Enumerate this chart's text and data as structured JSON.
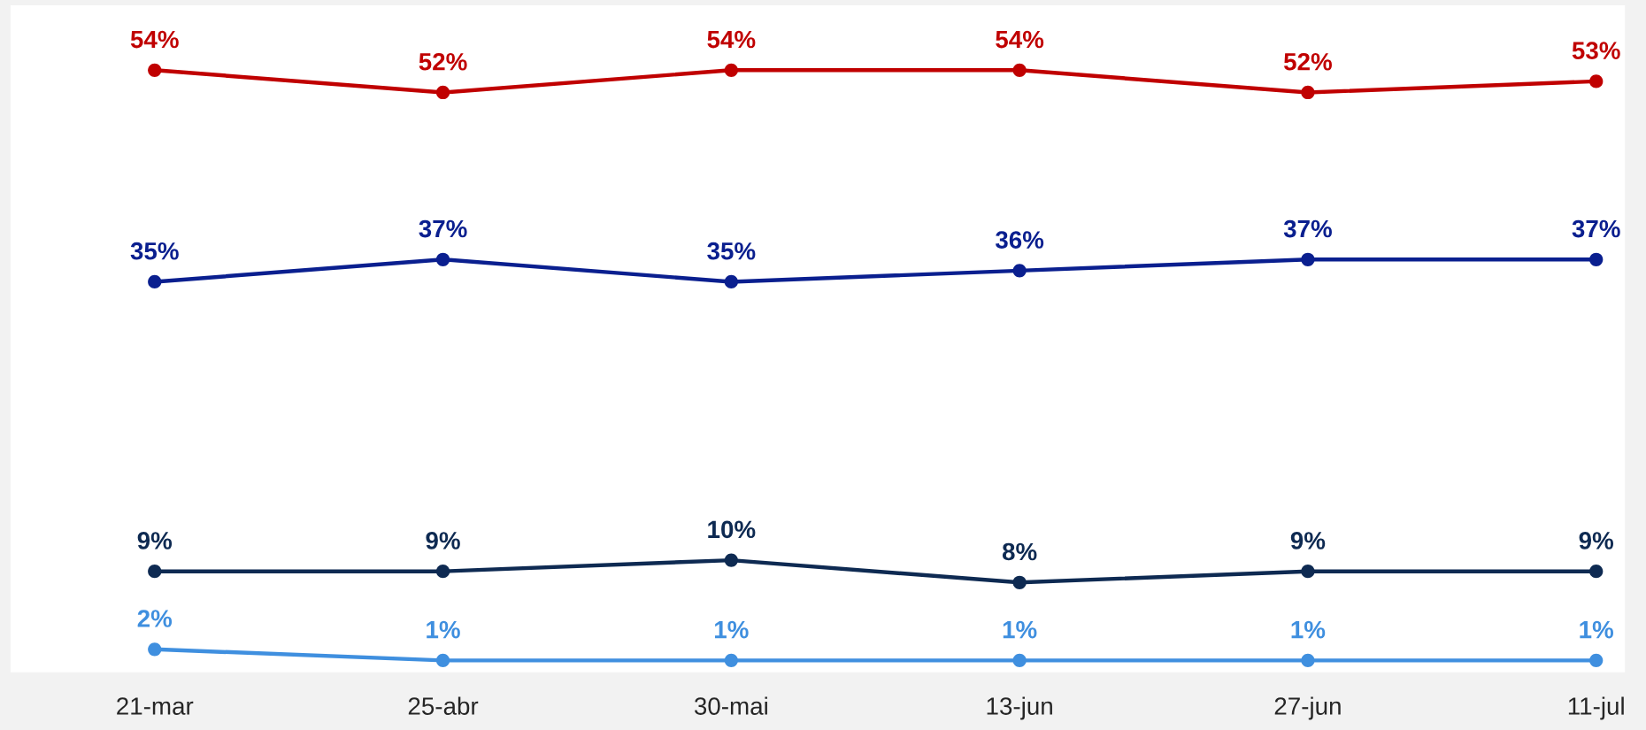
{
  "chart_data": {
    "type": "line",
    "categories": [
      "21-mar",
      "25-abr",
      "30-mai",
      "13-jun",
      "27-jun",
      "11-jul"
    ],
    "marker": "circle",
    "grid": false,
    "legend": false,
    "series": [
      {
        "color": "#c00000",
        "values": [
          54,
          52,
          54,
          54,
          52,
          53
        ],
        "value_labels": [
          "54%",
          "52%",
          "54%",
          "54%",
          "52%",
          "53%"
        ]
      },
      {
        "color": "#0a1f8f",
        "values": [
          35,
          37,
          35,
          36,
          37,
          37
        ],
        "value_labels": [
          "35%",
          "37%",
          "35%",
          "36%",
          "37%",
          "37%"
        ]
      },
      {
        "color": "#0e2a52",
        "values": [
          9,
          9,
          10,
          8,
          9,
          9
        ],
        "value_labels": [
          "9%",
          "9%",
          "10%",
          "8%",
          "9%",
          "9%"
        ]
      },
      {
        "color": "#3f8fdf",
        "values": [
          2,
          1,
          1,
          1,
          1,
          1
        ],
        "value_labels": [
          "2%",
          "1%",
          "1%",
          "1%",
          "1%",
          "1%"
        ]
      }
    ]
  }
}
